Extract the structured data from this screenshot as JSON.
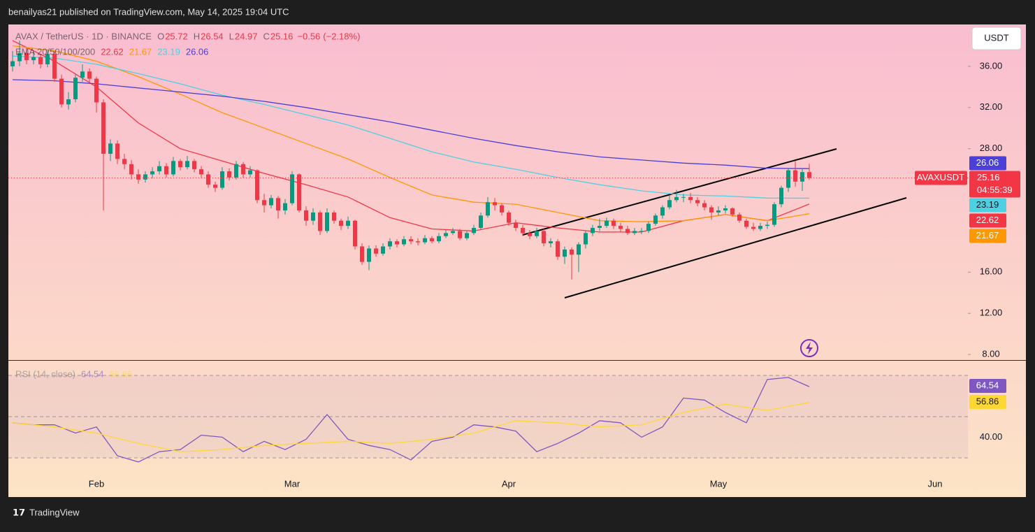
{
  "header": {
    "publisher": "benailyas21 published on TradingView.com, May 14, 2025 19:04 UTC"
  },
  "footer": {
    "brand": "TradingView"
  },
  "currency_button": "USDT",
  "chart_data": [
    {
      "type": "candlestick",
      "title": "AVAX / TetherUS · 1D · BINANCE",
      "symbol": "AVAXUSDT",
      "countdown": "04:55:39",
      "ohlc_labels": [
        "O",
        "H",
        "L",
        "C"
      ],
      "change": {
        "value": -0.56,
        "label": "−0.56"
      },
      "change_pct": {
        "value": -2.18,
        "label": "(−2.18%)"
      },
      "up_color": "#089981",
      "down_color": "#f23645",
      "xlim": [
        -0.6,
        136.7
      ],
      "xticks": [
        {
          "value": 12,
          "label": "Feb"
        },
        {
          "value": 40,
          "label": "Mar"
        },
        {
          "value": 71,
          "label": "Apr"
        },
        {
          "value": 101,
          "label": "May"
        },
        {
          "value": 132,
          "label": "Jun"
        }
      ],
      "ylim": [
        7.46,
        40.07
      ],
      "yticks": [
        {
          "value": 8,
          "label": "8.00"
        },
        {
          "value": 12,
          "label": "12.00"
        },
        {
          "value": 16,
          "label": "16.00"
        },
        {
          "value": 28,
          "label": "28.00"
        },
        {
          "value": 32,
          "label": "32.00"
        },
        {
          "value": 36,
          "label": "36.00"
        }
      ],
      "indicator_label": "EMA 20/50/100/200",
      "candles": [
        [
          36.0,
          37.5,
          35.5,
          36.5
        ],
        [
          36.5,
          38.5,
          36.0,
          37.3
        ],
        [
          37.3,
          37.8,
          36.2,
          36.6
        ],
        [
          36.6,
          37.4,
          36.2,
          36.9
        ],
        [
          36.9,
          37.2,
          35.8,
          36.2
        ],
        [
          36.2,
          37.6,
          35.9,
          37.2
        ],
        [
          37.2,
          37.5,
          34.5,
          34.8
        ],
        [
          34.8,
          35.2,
          32.0,
          32.3
        ],
        [
          32.3,
          33.5,
          31.8,
          32.8
        ],
        [
          32.8,
          35.3,
          32.5,
          34.9
        ],
        [
          34.9,
          36.2,
          34.5,
          35.5
        ],
        [
          35.5,
          35.8,
          34.3,
          34.8
        ],
        [
          34.8,
          35.0,
          31.5,
          32.5
        ],
        [
          32.5,
          32.8,
          22.0,
          27.5
        ],
        [
          27.5,
          28.9,
          26.8,
          28.5
        ],
        [
          28.5,
          28.8,
          26.5,
          27.0
        ],
        [
          27.0,
          27.5,
          26.0,
          26.5
        ],
        [
          26.5,
          26.9,
          25.0,
          25.5
        ],
        [
          25.5,
          26.0,
          24.6,
          25.0
        ],
        [
          25.0,
          25.8,
          24.7,
          25.5
        ],
        [
          25.5,
          26.2,
          25.1,
          25.8
        ],
        [
          25.8,
          26.8,
          25.5,
          26.3
        ],
        [
          26.3,
          26.6,
          25.2,
          25.5
        ],
        [
          25.5,
          27.2,
          25.3,
          26.8
        ],
        [
          26.8,
          27.0,
          25.9,
          26.2
        ],
        [
          26.2,
          27.3,
          26.0,
          26.8
        ],
        [
          26.8,
          27.0,
          25.7,
          26.0
        ],
        [
          26.0,
          26.3,
          25.2,
          25.5
        ],
        [
          25.5,
          25.8,
          24.2,
          24.5
        ],
        [
          24.5,
          24.8,
          23.8,
          24.2
        ],
        [
          24.2,
          26.2,
          24.0,
          25.8
        ],
        [
          25.8,
          26.1,
          24.9,
          25.2
        ],
        [
          25.2,
          26.8,
          25.0,
          26.5
        ],
        [
          26.5,
          26.7,
          25.2,
          25.5
        ],
        [
          25.5,
          26.3,
          25.2,
          25.9
        ],
        [
          25.9,
          26.0,
          22.7,
          23.0
        ],
        [
          23.0,
          23.6,
          21.8,
          22.5
        ],
        [
          22.5,
          23.5,
          22.2,
          23.2
        ],
        [
          23.2,
          23.4,
          21.2,
          22.0
        ],
        [
          22.0,
          23.1,
          21.6,
          22.7
        ],
        [
          22.7,
          25.8,
          22.5,
          25.5
        ],
        [
          25.5,
          25.6,
          21.8,
          22.0
        ],
        [
          22.0,
          22.4,
          20.5,
          21.0
        ],
        [
          21.0,
          22.2,
          20.6,
          21.8
        ],
        [
          21.8,
          22.0,
          19.6,
          20.0
        ],
        [
          20.0,
          22.2,
          19.8,
          21.8
        ],
        [
          21.8,
          22.0,
          20.7,
          21.0
        ],
        [
          21.0,
          21.2,
          20.1,
          20.5
        ],
        [
          20.5,
          21.4,
          20.2,
          21.0
        ],
        [
          21.0,
          21.1,
          18.2,
          18.5
        ],
        [
          18.5,
          18.8,
          16.7,
          17.0
        ],
        [
          17.0,
          18.6,
          16.2,
          18.3
        ],
        [
          18.3,
          18.6,
          17.5,
          17.8
        ],
        [
          17.8,
          18.8,
          17.6,
          18.5
        ],
        [
          18.5,
          19.3,
          18.2,
          19.0
        ],
        [
          19.0,
          19.2,
          18.4,
          18.7
        ],
        [
          18.7,
          19.5,
          18.5,
          19.2
        ],
        [
          19.2,
          19.5,
          18.7,
          19.0
        ],
        [
          19.0,
          19.3,
          18.6,
          18.9
        ],
        [
          18.9,
          19.6,
          18.7,
          19.3
        ],
        [
          19.3,
          19.5,
          18.8,
          19.0
        ],
        [
          19.0,
          19.8,
          18.8,
          19.5
        ],
        [
          19.5,
          20.1,
          19.3,
          19.8
        ],
        [
          19.8,
          20.3,
          19.6,
          20.0
        ],
        [
          20.0,
          20.2,
          19.1,
          19.3
        ],
        [
          19.3,
          20.0,
          19.1,
          19.8
        ],
        [
          19.8,
          20.6,
          19.6,
          20.3
        ],
        [
          20.3,
          21.8,
          20.1,
          21.5
        ],
        [
          21.5,
          23.3,
          21.3,
          22.8
        ],
        [
          22.8,
          23.2,
          22.0,
          22.5
        ],
        [
          22.5,
          22.7,
          21.5,
          21.8
        ],
        [
          21.8,
          22.0,
          20.5,
          20.8
        ],
        [
          20.8,
          21.1,
          20.0,
          20.3
        ],
        [
          20.3,
          20.6,
          19.5,
          19.8
        ],
        [
          19.8,
          20.1,
          19.2,
          19.5
        ],
        [
          19.5,
          20.3,
          19.3,
          20.0
        ],
        [
          20.0,
          20.2,
          18.5,
          18.8
        ],
        [
          18.8,
          19.3,
          18.4,
          19.0
        ],
        [
          19.0,
          19.2,
          17.2,
          17.5
        ],
        [
          17.5,
          18.5,
          16.8,
          18.2
        ],
        [
          18.2,
          18.4,
          15.3,
          17.7
        ],
        [
          17.7,
          18.9,
          16.0,
          18.7
        ],
        [
          18.7,
          20.0,
          18.3,
          19.8
        ],
        [
          19.8,
          20.6,
          19.5,
          20.3
        ],
        [
          20.3,
          21.2,
          20.0,
          20.5
        ],
        [
          20.5,
          21.3,
          20.3,
          21.0
        ],
        [
          21.0,
          21.2,
          20.2,
          20.5
        ],
        [
          20.5,
          20.8,
          19.9,
          20.2
        ],
        [
          20.2,
          20.5,
          19.6,
          19.8
        ],
        [
          19.8,
          20.3,
          19.6,
          20.0
        ],
        [
          20.0,
          20.3,
          19.7,
          20.0
        ],
        [
          20.0,
          20.9,
          19.8,
          20.7
        ],
        [
          20.7,
          21.7,
          20.5,
          21.5
        ],
        [
          21.5,
          22.5,
          21.2,
          22.3
        ],
        [
          22.3,
          23.5,
          22.1,
          23.0
        ],
        [
          23.0,
          24.0,
          22.8,
          23.3
        ],
        [
          23.3,
          23.6,
          22.8,
          23.3
        ],
        [
          23.3,
          23.7,
          22.7,
          23.0
        ],
        [
          23.0,
          23.3,
          22.4,
          22.7
        ],
        [
          22.7,
          23.0,
          22.0,
          22.3
        ],
        [
          22.3,
          22.5,
          21.1,
          21.8
        ],
        [
          21.8,
          22.4,
          21.5,
          22.0
        ],
        [
          22.0,
          22.5,
          21.7,
          22.2
        ],
        [
          22.2,
          22.3,
          21.4,
          21.6
        ],
        [
          21.6,
          21.8,
          20.8,
          21.0
        ],
        [
          21.0,
          21.2,
          20.2,
          20.4
        ],
        [
          20.4,
          20.8,
          20.0,
          20.2
        ],
        [
          20.2,
          20.8,
          20.0,
          20.5
        ],
        [
          20.5,
          20.9,
          20.2,
          20.6
        ],
        [
          20.6,
          22.8,
          20.4,
          22.6
        ],
        [
          22.6,
          24.4,
          22.3,
          24.2
        ],
        [
          24.2,
          26.1,
          23.8,
          25.9
        ],
        [
          25.9,
          26.8,
          24.3,
          24.8
        ],
        [
          24.8,
          26.0,
          23.9,
          25.72
        ],
        [
          25.72,
          26.54,
          24.97,
          25.16
        ]
      ],
      "series": [
        {
          "color": "#f23645",
          "x": [
            0,
            6,
            12,
            18,
            24,
            30,
            36,
            42,
            48,
            54,
            60,
            66,
            72,
            78,
            84,
            90,
            96,
            102,
            108,
            114
          ],
          "values": [
            38.5,
            36.5,
            34.0,
            30.5,
            28.0,
            26.8,
            25.6,
            24.5,
            23.3,
            21.3,
            20.2,
            20.0,
            20.8,
            20.3,
            19.9,
            19.9,
            21.0,
            21.6,
            21.0,
            22.62
          ]
        },
        {
          "color": "#ff9800",
          "x": [
            0,
            6,
            12,
            18,
            24,
            30,
            36,
            42,
            48,
            54,
            60,
            66,
            72,
            78,
            84,
            90,
            96,
            102,
            108,
            114
          ],
          "values": [
            38.0,
            37.5,
            36.5,
            35.0,
            33.3,
            31.5,
            30.0,
            28.5,
            27.0,
            25.2,
            23.5,
            22.8,
            22.6,
            21.8,
            21.0,
            20.9,
            21.0,
            21.6,
            21.0,
            21.67
          ]
        },
        {
          "color": "#4dd0e1",
          "x": [
            0,
            6,
            12,
            18,
            24,
            30,
            36,
            42,
            48,
            54,
            60,
            66,
            72,
            78,
            84,
            90,
            96,
            102,
            108,
            114
          ],
          "values": [
            37.0,
            36.8,
            36.2,
            35.3,
            34.3,
            33.2,
            32.3,
            31.3,
            30.3,
            29.0,
            27.7,
            26.7,
            26.0,
            25.2,
            24.5,
            23.9,
            23.5,
            23.4,
            23.2,
            23.19
          ]
        },
        {
          "color": "#4b3fd8",
          "x": [
            0,
            6,
            12,
            18,
            24,
            30,
            36,
            42,
            48,
            54,
            60,
            66,
            72,
            78,
            84,
            90,
            96,
            102,
            108,
            114
          ],
          "values": [
            34.7,
            34.6,
            34.3,
            33.9,
            33.5,
            33.1,
            32.6,
            32.0,
            31.3,
            30.6,
            29.8,
            29.0,
            28.3,
            27.7,
            27.2,
            26.9,
            26.6,
            26.4,
            26.1,
            26.06
          ]
        }
      ]
    },
    {
      "type": "line",
      "indicator_label": "RSI (14, close)",
      "xlim": [
        -0.6,
        136.7
      ],
      "ylim": [
        11.0,
        77.1
      ],
      "yticks": [
        {
          "value": 40,
          "label": "40.00"
        }
      ],
      "levels": [
        70,
        50,
        30
      ],
      "series": [
        {
          "color": "#7e57c2",
          "x": [
            0,
            3,
            6,
            9,
            12,
            15,
            18,
            21,
            24,
            27,
            30,
            33,
            36,
            39,
            42,
            45,
            48,
            51,
            54,
            57,
            60,
            63,
            66,
            69,
            72,
            75,
            78,
            81,
            84,
            87,
            90,
            93,
            96,
            99,
            102,
            105,
            108,
            111,
            114
          ],
          "values": [
            47,
            46,
            46,
            42,
            45,
            31,
            28,
            33,
            34,
            41,
            40,
            33,
            38,
            34,
            39,
            51,
            39,
            36,
            34,
            29,
            38,
            40,
            46,
            45,
            43,
            33,
            37,
            42,
            48,
            47,
            40,
            45,
            59,
            58,
            52,
            47,
            68,
            69,
            64.54
          ]
        },
        {
          "color": "#fdd835",
          "x": [
            0,
            6,
            12,
            18,
            24,
            30,
            36,
            42,
            48,
            54,
            60,
            66,
            72,
            78,
            84,
            90,
            96,
            102,
            108,
            114
          ],
          "values": [
            47,
            45,
            42,
            37,
            33,
            34,
            36,
            37,
            38,
            37,
            39,
            42,
            48,
            47,
            45,
            46,
            52,
            56,
            53,
            56.86
          ]
        }
      ]
    }
  ]
}
